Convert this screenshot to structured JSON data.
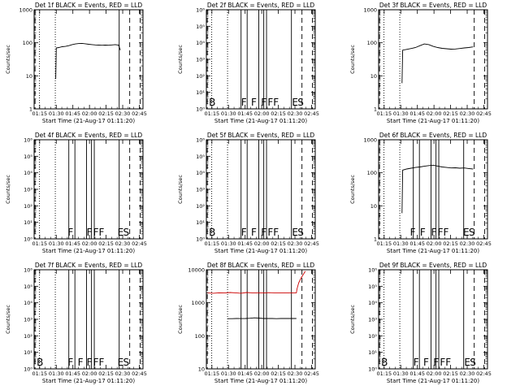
{
  "page": {
    "background": "#ffffff"
  },
  "colors": {
    "axis": "#000000",
    "events": "#000000",
    "lld": "#cc0000"
  },
  "x_ticks": [
    "01:15",
    "01:30",
    "01:45",
    "02:00",
    "02:15",
    "02:30",
    "02:45"
  ],
  "x_label": "Start Time (21-Aug-17 01:11:20)",
  "y_label": "Counts/sec",
  "chart_data": [
    {
      "type": "line",
      "title": "Det 1f BLACK = Events, RED = LLD",
      "xlim_min": [
        -1.33,
        97
      ],
      "yscale": "log",
      "ylim": [
        1,
        1000
      ],
      "y_ticks": [
        {
          "v": 1,
          "t": "1"
        },
        {
          "v": 10,
          "t": "10"
        },
        {
          "v": 100,
          "t": "100"
        },
        {
          "v": 1000,
          "t": "1000"
        }
      ],
      "dotted_lines_min": [
        3.5,
        17.8
      ],
      "dashed_lines_min": [
        -0.5,
        85,
        94.5
      ],
      "solid_lines_min": [
        75.5
      ],
      "annotations": [],
      "series": [
        {
          "color": "#000000",
          "x": [
            18.2,
            18.7,
            21,
            24,
            27,
            30,
            33,
            36,
            39,
            42,
            45,
            48,
            51,
            54,
            57,
            60,
            63,
            66,
            69,
            72,
            75,
            76.5
          ],
          "y": [
            8,
            70,
            72,
            76,
            78,
            82,
            88,
            92,
            95,
            96,
            93,
            90,
            88,
            86,
            85,
            84,
            85,
            84,
            86,
            88,
            85,
            60
          ]
        }
      ]
    },
    {
      "type": "line",
      "title": "Det 2f BLACK = Events, RED = LLD",
      "xlim_min": [
        -1.33,
        97
      ],
      "yscale": "log",
      "ylim": [
        1,
        1000000
      ],
      "y_ticks": [
        {
          "v": 1,
          "t": "10⁰"
        },
        {
          "v": 10,
          "t": "10¹"
        },
        {
          "v": 100,
          "t": "10²"
        },
        {
          "v": 1000,
          "t": "10³"
        },
        {
          "v": 10000,
          "t": "10⁴"
        },
        {
          "v": 100000,
          "t": "10⁵"
        },
        {
          "v": 1000000,
          "t": "10⁶"
        }
      ],
      "dotted_lines_min": [
        3.5,
        17.8
      ],
      "dashed_lines_min": [
        -0.5,
        85,
        94.5
      ],
      "solid_lines_min": [
        30,
        35.5,
        46,
        50.5,
        53,
        75.5
      ],
      "annotations": [
        {
          "x_min": 1,
          "text": "B"
        },
        {
          "x_min": 30,
          "text": "F"
        },
        {
          "x_min": 39,
          "text": "F"
        },
        {
          "x_min": 48,
          "text": "F"
        },
        {
          "x_min": 54,
          "text": "F"
        },
        {
          "x_min": 59,
          "text": "F"
        },
        {
          "x_min": 76,
          "text": "E"
        },
        {
          "x_min": 81,
          "text": "S"
        }
      ],
      "series": []
    },
    {
      "type": "line",
      "title": "Det 3f BLACK = Events, RED = LLD",
      "xlim_min": [
        -1.33,
        97
      ],
      "yscale": "log",
      "ylim": [
        1,
        1000
      ],
      "y_ticks": [
        {
          "v": 1,
          "t": "1"
        },
        {
          "v": 10,
          "t": "10"
        },
        {
          "v": 100,
          "t": "100"
        },
        {
          "v": 1000,
          "t": "1000"
        }
      ],
      "dotted_lines_min": [
        3.5,
        17.8
      ],
      "dashed_lines_min": [
        -0.5,
        85,
        94.5
      ],
      "solid_lines_min": [],
      "annotations": [],
      "series": [
        {
          "color": "#000000",
          "x": [
            19.8,
            20.4,
            24,
            28,
            32,
            36,
            40,
            44,
            48,
            52,
            56,
            60,
            64,
            68,
            72,
            76,
            80,
            84
          ],
          "y": [
            6,
            60,
            63,
            67,
            72,
            82,
            92,
            88,
            78,
            72,
            68,
            66,
            64,
            65,
            67,
            70,
            72,
            75
          ]
        }
      ]
    },
    {
      "type": "line",
      "title": "Det 4f BLACK = Events, RED = LLD",
      "xlim_min": [
        -1.33,
        97
      ],
      "yscale": "log",
      "ylim": [
        1,
        1000000
      ],
      "y_ticks": [
        {
          "v": 1,
          "t": "10⁰"
        },
        {
          "v": 10,
          "t": "10¹"
        },
        {
          "v": 100,
          "t": "10²"
        },
        {
          "v": 1000,
          "t": "10³"
        },
        {
          "v": 10000,
          "t": "10⁴"
        },
        {
          "v": 100000,
          "t": "10⁵"
        },
        {
          "v": 1000000,
          "t": "10⁶"
        }
      ],
      "dotted_lines_min": [
        3.5,
        17.8
      ],
      "dashed_lines_min": [
        -0.5,
        85,
        94.5
      ],
      "solid_lines_min": [
        30,
        35.5,
        46,
        50.5,
        53,
        75.5
      ],
      "annotations": [
        {
          "x_min": 29,
          "text": "F"
        },
        {
          "x_min": 46,
          "text": "F"
        },
        {
          "x_min": 52,
          "text": "F"
        },
        {
          "x_min": 57,
          "text": "F"
        },
        {
          "x_min": 74,
          "text": "E"
        },
        {
          "x_min": 79,
          "text": "S"
        }
      ],
      "series": []
    },
    {
      "type": "line",
      "title": "Det 5f BLACK = Events, RED = LLD",
      "xlim_min": [
        -1.33,
        97
      ],
      "yscale": "log",
      "ylim": [
        1,
        1000000
      ],
      "y_ticks": [
        {
          "v": 1,
          "t": "10⁰"
        },
        {
          "v": 10,
          "t": "10¹"
        },
        {
          "v": 100,
          "t": "10²"
        },
        {
          "v": 1000,
          "t": "10³"
        },
        {
          "v": 10000,
          "t": "10⁴"
        },
        {
          "v": 100000,
          "t": "10⁵"
        },
        {
          "v": 1000000,
          "t": "10⁶"
        }
      ],
      "dotted_lines_min": [
        3.5,
        17.8
      ],
      "dashed_lines_min": [
        -0.5,
        85,
        94.5
      ],
      "solid_lines_min": [
        30,
        35.5,
        46,
        50.5,
        53,
        75.5
      ],
      "annotations": [
        {
          "x_min": 1,
          "text": "B"
        },
        {
          "x_min": 30,
          "text": "F"
        },
        {
          "x_min": 39,
          "text": "F"
        },
        {
          "x_min": 48,
          "text": "F"
        },
        {
          "x_min": 54,
          "text": "F"
        },
        {
          "x_min": 59,
          "text": "F"
        },
        {
          "x_min": 76,
          "text": "E"
        },
        {
          "x_min": 81,
          "text": "S"
        }
      ],
      "series": []
    },
    {
      "type": "line",
      "title": "Det 6f BLACK = Events, RED = LLD",
      "xlim_min": [
        -1.33,
        97
      ],
      "yscale": "log",
      "ylim": [
        1,
        1000
      ],
      "y_ticks": [
        {
          "v": 1,
          "t": "1"
        },
        {
          "v": 10,
          "t": "10"
        },
        {
          "v": 100,
          "t": "100"
        },
        {
          "v": 1000,
          "t": "1000"
        }
      ],
      "dotted_lines_min": [
        3.5,
        17.8
      ],
      "dashed_lines_min": [
        -0.5,
        85,
        94.5
      ],
      "solid_lines_min": [
        30,
        35.5,
        46,
        50.5,
        53,
        75.5
      ],
      "annotations": [
        {
          "x_min": 27,
          "text": "F"
        },
        {
          "x_min": 36,
          "text": "F"
        },
        {
          "x_min": 46,
          "text": "F"
        },
        {
          "x_min": 52,
          "text": "F"
        },
        {
          "x_min": 57,
          "text": "F"
        },
        {
          "x_min": 75,
          "text": "E"
        },
        {
          "x_min": 80,
          "text": "S"
        }
      ],
      "series": [
        {
          "color": "#000000",
          "x": [
            19.8,
            20.4,
            24,
            28,
            32,
            36,
            40,
            44,
            48,
            52,
            56,
            60,
            64,
            68,
            72,
            76,
            80,
            84
          ],
          "y": [
            6,
            120,
            130,
            138,
            145,
            150,
            158,
            165,
            170,
            160,
            150,
            145,
            140,
            142,
            138,
            140,
            135,
            130
          ]
        }
      ]
    },
    {
      "type": "line",
      "title": "Det 7f BLACK = Events, RED = LLD",
      "xlim_min": [
        -1.33,
        97
      ],
      "yscale": "log",
      "ylim": [
        1,
        1000000
      ],
      "y_ticks": [
        {
          "v": 1,
          "t": "10⁰"
        },
        {
          "v": 10,
          "t": "10¹"
        },
        {
          "v": 100,
          "t": "10²"
        },
        {
          "v": 1000,
          "t": "10³"
        },
        {
          "v": 10000,
          "t": "10⁴"
        },
        {
          "v": 100000,
          "t": "10⁵"
        },
        {
          "v": 1000000,
          "t": "10⁶"
        }
      ],
      "dotted_lines_min": [
        3.5,
        17.8
      ],
      "dashed_lines_min": [
        -0.5,
        85,
        94.5
      ],
      "solid_lines_min": [
        30,
        35.5,
        46,
        50.5,
        53,
        75.5
      ],
      "annotations": [
        {
          "x_min": 1,
          "text": "B"
        },
        {
          "x_min": 29,
          "text": "F"
        },
        {
          "x_min": 38,
          "text": "F"
        },
        {
          "x_min": 46,
          "text": "F"
        },
        {
          "x_min": 52,
          "text": "F"
        },
        {
          "x_min": 57,
          "text": "F"
        },
        {
          "x_min": 74,
          "text": "E"
        },
        {
          "x_min": 79,
          "text": "S"
        }
      ],
      "series": []
    },
    {
      "type": "line",
      "title": "Det 8f BLACK = Events, RED = LLD",
      "xlim_min": [
        -1.33,
        97
      ],
      "yscale": "log",
      "ylim": [
        10,
        10000
      ],
      "y_ticks": [
        {
          "v": 10,
          "t": "10"
        },
        {
          "v": 100,
          "t": "100"
        },
        {
          "v": 1000,
          "t": "1000"
        },
        {
          "v": 10000,
          "t": "10000"
        }
      ],
      "dotted_lines_min": [
        3.5,
        17.8
      ],
      "dashed_lines_min": [
        -0.5,
        85,
        94.5
      ],
      "solid_lines_min": [
        30,
        35.5,
        46,
        50.5,
        53,
        75.5
      ],
      "annotations": [],
      "series": [
        {
          "color": "#cc0000",
          "x": [
            -1.33,
            5,
            10,
            15,
            20,
            25,
            30,
            35,
            40,
            45,
            50,
            55,
            60,
            65,
            70,
            75,
            80,
            80.5,
            82,
            84,
            86,
            88
          ],
          "y": [
            2000,
            1950,
            2000,
            1980,
            2050,
            2000,
            1950,
            2050,
            2000,
            2000,
            1980,
            2020,
            2000,
            2000,
            1980,
            2000,
            2000,
            2600,
            4000,
            5500,
            7000,
            9000
          ]
        },
        {
          "color": "#000000",
          "x": [
            18,
            22,
            26,
            30,
            34,
            38,
            42,
            46,
            50,
            54,
            58,
            62,
            66,
            70,
            74,
            78,
            80
          ],
          "y": [
            330,
            330,
            335,
            332,
            335,
            340,
            350,
            345,
            335,
            335,
            335,
            330,
            335,
            335,
            335,
            335,
            335
          ]
        }
      ]
    },
    {
      "type": "line",
      "title": "Det 9f BLACK = Events, RED = LLD",
      "xlim_min": [
        -1.33,
        97
      ],
      "yscale": "log",
      "ylim": [
        1,
        1000000
      ],
      "y_ticks": [
        {
          "v": 1,
          "t": "10⁰"
        },
        {
          "v": 10,
          "t": "10¹"
        },
        {
          "v": 100,
          "t": "10²"
        },
        {
          "v": 1000,
          "t": "10³"
        },
        {
          "v": 10000,
          "t": "10⁴"
        },
        {
          "v": 100000,
          "t": "10⁵"
        },
        {
          "v": 1000000,
          "t": "10⁶"
        }
      ],
      "dotted_lines_min": [
        3.5,
        17.8
      ],
      "dashed_lines_min": [
        -0.5,
        85,
        94.5
      ],
      "solid_lines_min": [
        30,
        35.5,
        46,
        50.5,
        53,
        75.5
      ],
      "annotations": [
        {
          "x_min": 1,
          "text": "B"
        },
        {
          "x_min": 30,
          "text": "F"
        },
        {
          "x_min": 39,
          "text": "F"
        },
        {
          "x_min": 48,
          "text": "F"
        },
        {
          "x_min": 54,
          "text": "F"
        },
        {
          "x_min": 59,
          "text": "F"
        },
        {
          "x_min": 76,
          "text": "E"
        },
        {
          "x_min": 81,
          "text": "S"
        }
      ],
      "series": []
    }
  ]
}
